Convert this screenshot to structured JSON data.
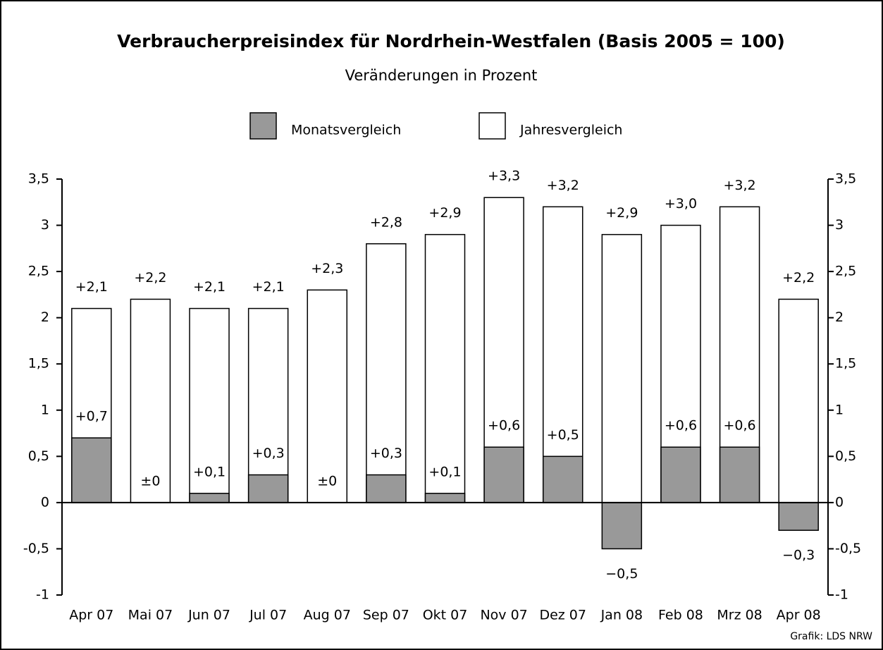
{
  "chart_data": {
    "type": "bar",
    "title": "Verbraucherpreisindex für Nordrhein-Westfalen (Basis 2005 = 100)",
    "subtitle": "Veränderungen in Prozent",
    "source": "Grafik: LDS NRW",
    "categories": [
      "Apr 07",
      "Mai 07",
      "Jun 07",
      "Jul 07",
      "Aug 07",
      "Sep 07",
      "Okt 07",
      "Nov 07",
      "Dez 07",
      "Jan 08",
      "Feb 08",
      "Mrz 08",
      "Apr 08"
    ],
    "series": [
      {
        "name": "Monatsvergleich",
        "color": "#999999",
        "values": [
          0.7,
          0,
          0.1,
          0.3,
          0,
          0.3,
          0.1,
          0.6,
          0.5,
          -0.5,
          0.6,
          0.6,
          -0.3
        ],
        "value_labels": [
          "+0,7",
          "±0",
          "+0,1",
          "+0,3",
          "±0",
          "+0,3",
          "+0,1",
          "+0,6",
          "+0,5",
          "−0,5",
          "+0,6",
          "+0,6",
          "−0,3"
        ]
      },
      {
        "name": "Jahresvergleich",
        "color": "#ffffff",
        "values": [
          2.1,
          2.2,
          2.1,
          2.1,
          2.3,
          2.8,
          2.9,
          3.3,
          3.2,
          2.9,
          3.0,
          3.2,
          2.2
        ],
        "value_labels": [
          "+2,1",
          "+2,2",
          "+2,1",
          "+2,1",
          "+2,3",
          "+2,8",
          "+2,9",
          "+3,3",
          "+3,2",
          "+2,9",
          "+3,0",
          "+3,2",
          "+2,2"
        ]
      }
    ],
    "ylim": [
      -1,
      3.5
    ],
    "yticks": [
      -1,
      {
        "value": -0.5,
        "label": "-0,5"
      },
      0,
      {
        "value": 0.5,
        "label": "0,5"
      },
      1,
      {
        "value": 1.5,
        "label": "1,5"
      },
      2,
      {
        "value": 2.5,
        "label": "2,5"
      },
      3,
      {
        "value": 3.5,
        "label": "3,5"
      }
    ],
    "y2lim": [
      -1,
      3.5
    ],
    "y2ticks": [
      -1,
      {
        "value": -0.5,
        "label": "-0,5"
      },
      0,
      {
        "value": 0.5,
        "label": "0,5"
      },
      1,
      {
        "value": 1.5,
        "label": "1,5"
      },
      2,
      {
        "value": 2.5,
        "label": "2,5"
      },
      3,
      {
        "value": 3.5,
        "label": "3,5"
      }
    ],
    "grid": false
  }
}
